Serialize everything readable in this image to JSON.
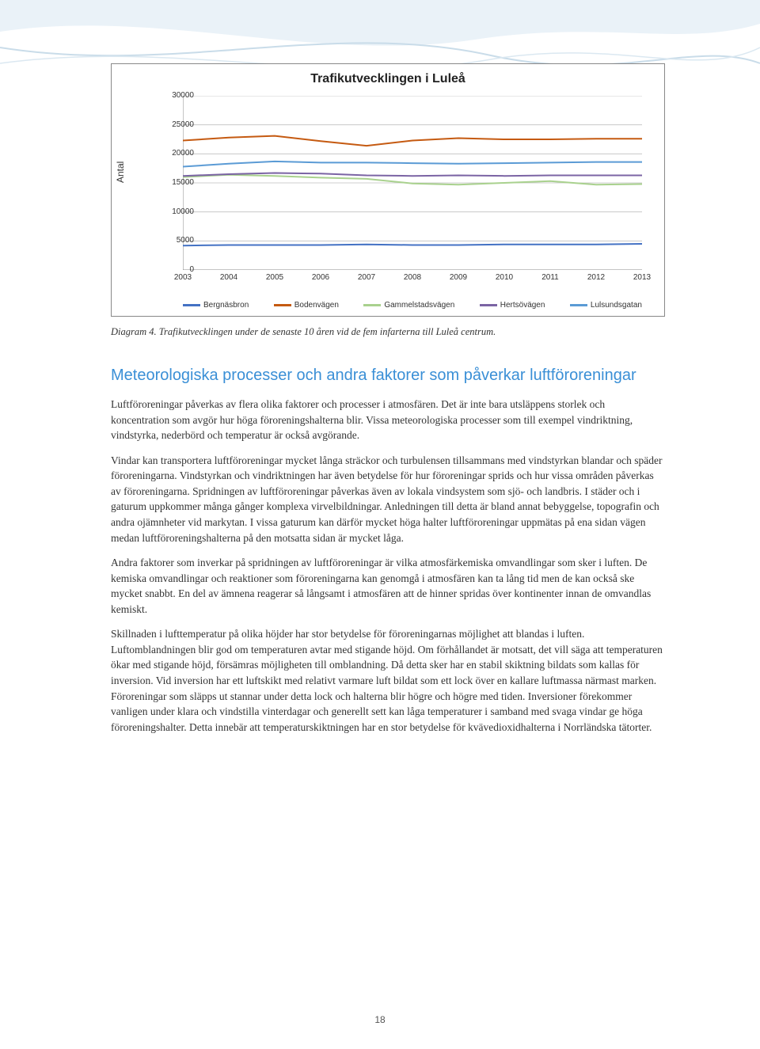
{
  "swoosh": {
    "topColor": "#dce9f2",
    "bottomColor": "#ffffff"
  },
  "chart": {
    "type": "line",
    "title": "Trafikutvecklingen i Luleå",
    "title_fontsize": 16,
    "ylabel": "Antal",
    "ylim": [
      0,
      30000
    ],
    "ytick_step": 5000,
    "yticks": [
      "0",
      "5000",
      "10000",
      "15000",
      "20000",
      "25000",
      "30000"
    ],
    "xticks": [
      "2003",
      "2004",
      "2005",
      "2006",
      "2007",
      "2008",
      "2009",
      "2010",
      "2011",
      "2012",
      "2013"
    ],
    "background_color": "#ffffff",
    "grid_color": "#bfbfbf",
    "border_color": "#888888",
    "line_width": 2,
    "series": [
      {
        "name": "Bergnäsbron",
        "color": "#4472c4",
        "values": [
          4200,
          4300,
          4300,
          4300,
          4400,
          4300,
          4300,
          4400,
          4400,
          4400,
          4500
        ]
      },
      {
        "name": "Bodenvägen",
        "color": "#c55a11",
        "values": [
          22300,
          22800,
          23100,
          22200,
          21400,
          22300,
          22700,
          22500,
          22500,
          22600,
          22600
        ]
      },
      {
        "name": "Gammelstadsvägen",
        "color": "#a9d18e",
        "values": [
          16000,
          16400,
          16200,
          15900,
          15700,
          14900,
          14700,
          15000,
          15300,
          14700,
          14800
        ]
      },
      {
        "name": "Hertsövägen",
        "color": "#7b64a4",
        "values": [
          16200,
          16500,
          16700,
          16600,
          16300,
          16200,
          16300,
          16200,
          16300,
          16300,
          16300
        ]
      },
      {
        "name": "Lulsundsgatan",
        "color": "#5b9bd5",
        "values": [
          17800,
          18300,
          18700,
          18500,
          18500,
          18400,
          18300,
          18400,
          18500,
          18600,
          18600
        ]
      }
    ]
  },
  "caption": "Diagram 4. Trafikutvecklingen under de senaste 10 åren vid de fem infarterna till Luleå centrum.",
  "heading": "Meteorologiska processer och andra faktorer som påverkar luftföroreningar",
  "heading_color": "#3a8fd6",
  "paragraphs": [
    "Luftföroreningar påverkas av flera olika faktorer och processer i atmosfären. Det är inte bara utsläppens storlek och koncentration som avgör hur höga föroreningshalterna blir. Vissa meteorologiska processer som till exempel vindriktning, vindstyrka, nederbörd och temperatur är också avgörande.",
    "Vindar kan transportera luftföroreningar mycket långa sträckor och turbulensen tillsammans med vindstyrkan blandar och späder föroreningarna. Vindstyrkan och vindriktningen har även betydelse för hur föroreningar sprids och hur vissa områden påverkas av föroreningarna. Spridningen av luftföroreningar påverkas även av lokala vindsystem som sjö- och landbris. I städer och i gaturum uppkommer många gånger komplexa virvelbildningar. Anledningen till detta är bland annat bebyggelse, topografin och andra ojämnheter vid markytan. I vissa gaturum kan därför mycket höga halter luftföroreningar uppmätas på ena sidan vägen medan luftföroreningshalterna på den motsatta sidan är mycket låga.",
    "Andra faktorer som inverkar på spridningen av luftföroreningar är vilka atmosfärkemiska omvandlingar som sker i luften. De kemiska omvandlingar och reaktioner som föroreningarna kan genomgå i atmosfären kan ta lång tid men de kan också ske mycket snabbt. En del av ämnena reagerar så långsamt i atmosfären att de hinner spridas över kontinenter innan de omvandlas kemiskt.",
    "Skillnaden i lufttemperatur på olika höjder har stor betydelse för föroreningarnas möjlighet att blandas i luften. Luftomblandningen blir god om temperaturen avtar med stigande höjd. Om förhållandet är motsatt, det vill säga att temperaturen ökar med stigande höjd, försämras möjligheten till omblandning. Då detta sker har en stabil skiktning bildats som kallas för inversion. Vid inversion har ett luftskikt med relativt varmare luft bildat som ett lock över en kallare luftmassa närmast marken. Föroreningar som släpps ut stannar under detta lock och halterna blir högre och högre med tiden. Inversioner förekommer vanligen under klara och vindstilla vinterdagar och generellt sett kan låga temperaturer i samband med svaga vindar ge höga föroreningshalter. Detta innebär att temperaturskiktningen har en stor betydelse för kvävedioxidhalterna i Norrländska tätorter."
  ],
  "page_number": "18"
}
